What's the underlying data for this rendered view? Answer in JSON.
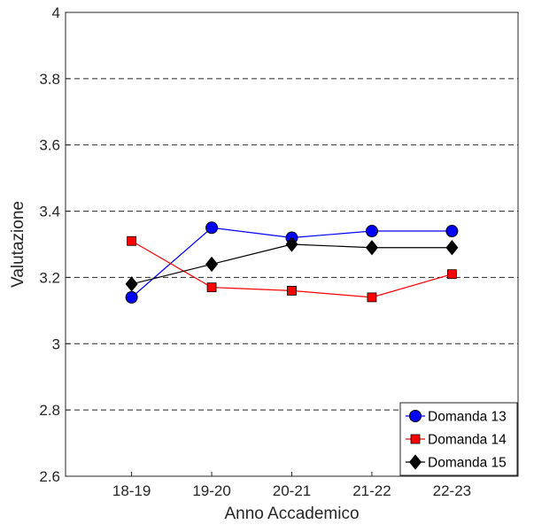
{
  "chart_data": {
    "type": "line",
    "title": "",
    "xlabel": "Anno Accademico",
    "ylabel": "Valutazione",
    "categories": [
      "18-19",
      "19-20",
      "20-21",
      "21-22",
      "22-23"
    ],
    "ylim": [
      2.6,
      4
    ],
    "yticks": [
      2.6,
      2.8,
      3,
      3.2,
      3.4,
      3.6,
      3.8,
      4
    ],
    "ytick_labels": [
      "2.6",
      "2.8",
      "3",
      "3.2",
      "3.4",
      "3.6",
      "3.8",
      "4"
    ],
    "grid": "horizontal dashed",
    "legend_position": "bottom-right",
    "series": [
      {
        "name": "Domanda 13",
        "values": [
          3.14,
          3.35,
          3.32,
          3.34,
          3.34
        ],
        "color": "#0000ff",
        "marker": "circle",
        "marker_fill": "#0000ff"
      },
      {
        "name": "Domanda 14",
        "values": [
          3.31,
          3.17,
          3.16,
          3.14,
          3.21
        ],
        "color": "#ff0000",
        "marker": "square",
        "marker_fill": "#ff0000"
      },
      {
        "name": "Domanda 15",
        "values": [
          3.18,
          3.24,
          3.3,
          3.29,
          3.29
        ],
        "color": "#000000",
        "marker": "diamond",
        "marker_fill": "#000000"
      }
    ]
  }
}
